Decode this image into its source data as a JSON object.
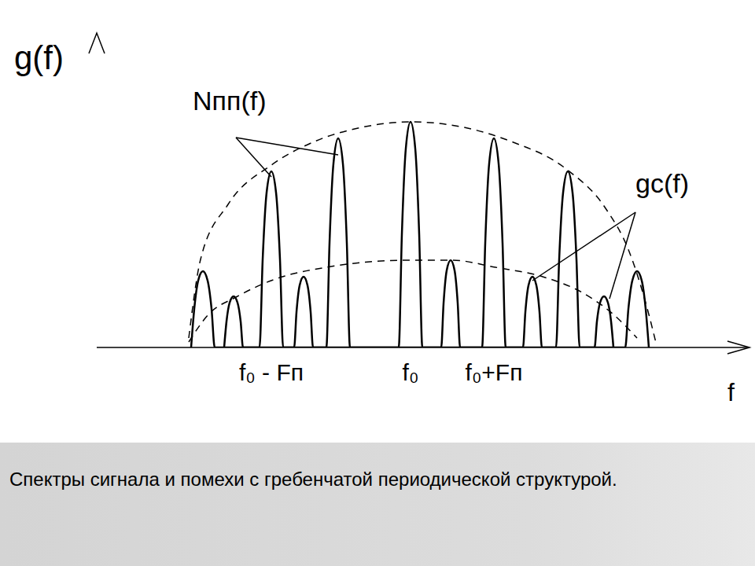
{
  "chart_data": {
    "type": "line",
    "x_label": "f",
    "y_label": "g(f)",
    "xlim": [
      0,
      830
    ],
    "ylim": [
      0,
      400
    ],
    "xticks": [
      {
        "value": 222,
        "label": "f₀ - Fп"
      },
      {
        "value": 399,
        "label": "f₀"
      },
      {
        "value": 505,
        "label": "f₀+Fп"
      }
    ],
    "tick_labels": "x",
    "grid": false,
    "annotations": [
      {
        "text": "Nпп(f)"
      },
      {
        "text": "gc(f)"
      }
    ],
    "series": [
      {
        "color": "#000000",
        "line_style": "solid",
        "x": [
          120,
          124,
          129,
          135,
          141,
          146,
          150,
          207,
          211,
          216,
          222,
          228,
          233,
          237,
          292,
          296,
          301,
          307,
          313,
          318,
          322,
          384,
          388,
          393,
          399,
          405,
          410,
          414,
          490,
          494,
          499,
          505,
          511,
          516,
          520,
          584,
          588,
          593,
          599,
          605,
          610,
          614,
          672,
          676,
          681,
          687,
          693,
          698,
          702
        ],
        "values": [
          0,
          49,
          85,
          97,
          85,
          49,
          0,
          0,
          112,
          197,
          224,
          197,
          112,
          0,
          0,
          133,
          234,
          266,
          234,
          133,
          0,
          0,
          144,
          253,
          287,
          253,
          144,
          0,
          0,
          133,
          234,
          266,
          234,
          133,
          0,
          0,
          112,
          197,
          224,
          197,
          112,
          0,
          0,
          49,
          85,
          97,
          85,
          49,
          0
        ]
      },
      {
        "color": "#000000",
        "line_style": "solid",
        "x": [
          162,
          165,
          169,
          174,
          179,
          183,
          186,
          251,
          254,
          258,
          263,
          268,
          272,
          275,
          438,
          441,
          445,
          450,
          455,
          459,
          462,
          542,
          545,
          549,
          554,
          559,
          563,
          566,
          633,
          636,
          640,
          645,
          650,
          654,
          657
        ],
        "values": [
          0,
          33,
          57,
          65,
          57,
          33,
          0,
          0,
          45,
          79,
          90,
          79,
          45,
          0,
          0,
          56,
          98,
          111,
          98,
          56,
          0,
          0,
          45,
          79,
          90,
          79,
          45,
          0,
          0,
          33,
          57,
          65,
          57,
          33,
          0
        ]
      },
      {
        "color": "#000000",
        "line_style": "dashed",
        "x": [
          117,
          132,
          167,
          222,
          277,
          337,
          399,
          467,
          527,
          597,
          647,
          677,
          702,
          712
        ],
        "values": [
          12,
          112,
          182,
          232,
          262,
          280,
          287,
          280,
          262,
          227,
          177,
          122,
          42,
          2
        ]
      },
      {
        "color": "#000000",
        "line_style": "dashed",
        "x": [
          117,
          142,
          177,
          227,
          292,
          347,
          399,
          452,
          507,
          567,
          617,
          657,
          687
        ],
        "values": [
          7,
          42,
          64,
          87,
          102,
          109,
          111,
          111,
          102,
          90,
          70,
          42,
          12
        ]
      }
    ]
  },
  "caption": "Спектры сигнала и помехи с гребенчатой периодической структурой."
}
